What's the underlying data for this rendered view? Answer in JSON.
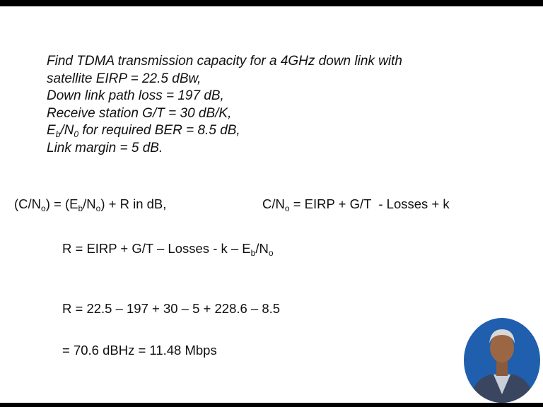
{
  "problem": {
    "lines": [
      [
        "Find TDMA transmission capacity for a 4GHz down link with"
      ],
      [
        "satellite EIRP = 22.5 dBw,"
      ],
      [
        "Down link path loss = 197 dB,"
      ],
      [
        "Receive station G/T = 30 dB/K,"
      ],
      [
        "E",
        {
          "sub": "b"
        },
        "/N",
        {
          "sub": "0"
        },
        " for required BER = 8.5 dB,"
      ],
      [
        "Link margin = 5 dB."
      ]
    ]
  },
  "solution": {
    "eq1_left": [
      "(C/N",
      {
        "sub": "o"
      },
      ") = (E",
      {
        "sub": "b"
      },
      "/N",
      {
        "sub": "o"
      },
      ") + R in dB,"
    ],
    "eq1_right": [
      "C/N",
      {
        "sub": "o"
      },
      " = EIRP + G/T  - Losses + k"
    ],
    "eq2": [
      "R = EIRP + G/T – Losses - k – E",
      {
        "sub": "b"
      },
      "/N",
      {
        "sub": "o"
      }
    ],
    "eq3": [
      "R = 22.5 – 197 + 30 – 5 + 228.6 – 8.5"
    ],
    "eq4": [
      "= 70.6 dBHz = 11.48 Mbps"
    ]
  }
}
